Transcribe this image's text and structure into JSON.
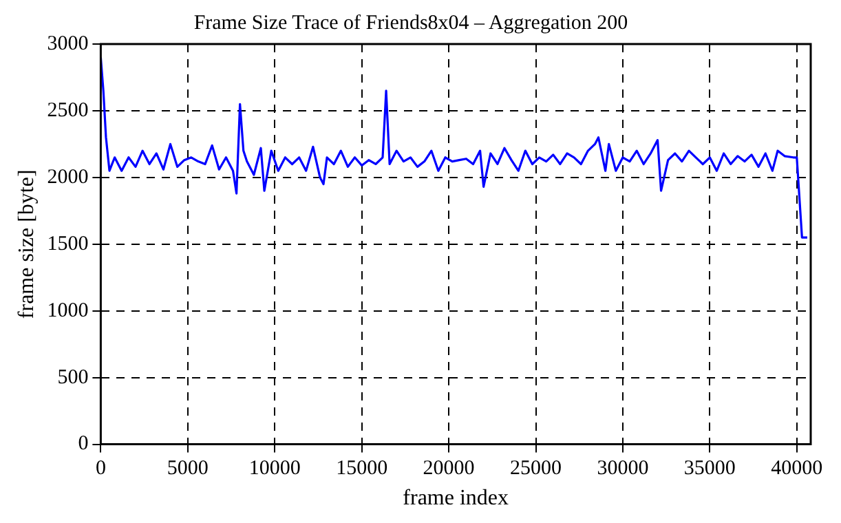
{
  "chart_data": {
    "type": "line",
    "title": "Frame Size Trace of Friends8x04 – Aggregation 200",
    "xlabel": "frame index",
    "ylabel": "frame size [byte]",
    "x": [
      0,
      150,
      300,
      500,
      800,
      1200,
      1600,
      2000,
      2400,
      2800,
      3200,
      3600,
      4000,
      4400,
      4800,
      5200,
      5600,
      6000,
      6400,
      6800,
      7200,
      7600,
      7800,
      8000,
      8200,
      8400,
      8800,
      9200,
      9400,
      9800,
      10200,
      10600,
      11000,
      11400,
      11800,
      12200,
      12600,
      12800,
      13000,
      13400,
      13800,
      14200,
      14600,
      15000,
      15400,
      15800,
      16200,
      16400,
      16600,
      17000,
      17400,
      17800,
      18200,
      18600,
      19000,
      19400,
      19800,
      20200,
      20600,
      21000,
      21400,
      21800,
      22000,
      22400,
      22800,
      23200,
      23600,
      24000,
      24400,
      24800,
      25200,
      25600,
      26000,
      26400,
      26800,
      27200,
      27600,
      28000,
      28400,
      28600,
      29000,
      29200,
      29600,
      30000,
      30400,
      30800,
      31200,
      31600,
      32000,
      32200,
      32600,
      33000,
      33400,
      33800,
      34200,
      34600,
      35000,
      35400,
      35800,
      36200,
      36600,
      37000,
      37400,
      37800,
      38200,
      38600,
      38900,
      39300,
      39800,
      40000,
      40100,
      40300,
      40600
    ],
    "series": [
      {
        "color": "#0000ff",
        "values": [
          2900,
          2650,
          2300,
          2050,
          2150,
          2050,
          2150,
          2080,
          2200,
          2100,
          2180,
          2060,
          2250,
          2080,
          2130,
          2150,
          2120,
          2100,
          2240,
          2060,
          2150,
          2050,
          1880,
          2550,
          2200,
          2120,
          2020,
          2220,
          1900,
          2200,
          2050,
          2150,
          2100,
          2150,
          2050,
          2230,
          2000,
          1950,
          2150,
          2100,
          2200,
          2080,
          2150,
          2090,
          2130,
          2100,
          2150,
          2650,
          2100,
          2200,
          2120,
          2150,
          2080,
          2120,
          2200,
          2050,
          2150,
          2120,
          2130,
          2140,
          2100,
          2200,
          1930,
          2180,
          2100,
          2220,
          2130,
          2050,
          2200,
          2100,
          2150,
          2120,
          2170,
          2100,
          2180,
          2150,
          2100,
          2200,
          2250,
          2300,
          2050,
          2250,
          2050,
          2150,
          2120,
          2200,
          2100,
          2180,
          2280,
          1900,
          2130,
          2180,
          2120,
          2200,
          2150,
          2100,
          2150,
          2050,
          2180,
          2100,
          2160,
          2120,
          2170,
          2080,
          2180,
          2050,
          2200,
          2160,
          2150,
          2150,
          1950,
          1550,
          1550
        ]
      }
    ],
    "xlim": [
      0,
      40800
    ],
    "xticks": [
      0,
      5000,
      10000,
      15000,
      20000,
      25000,
      30000,
      35000,
      40000
    ],
    "ylim": [
      0,
      3000
    ],
    "yticks": [
      0,
      500,
      1000,
      1500,
      2000,
      2500,
      3000
    ],
    "grid": true,
    "legend": false,
    "marker": "none",
    "line_style": "solid"
  }
}
